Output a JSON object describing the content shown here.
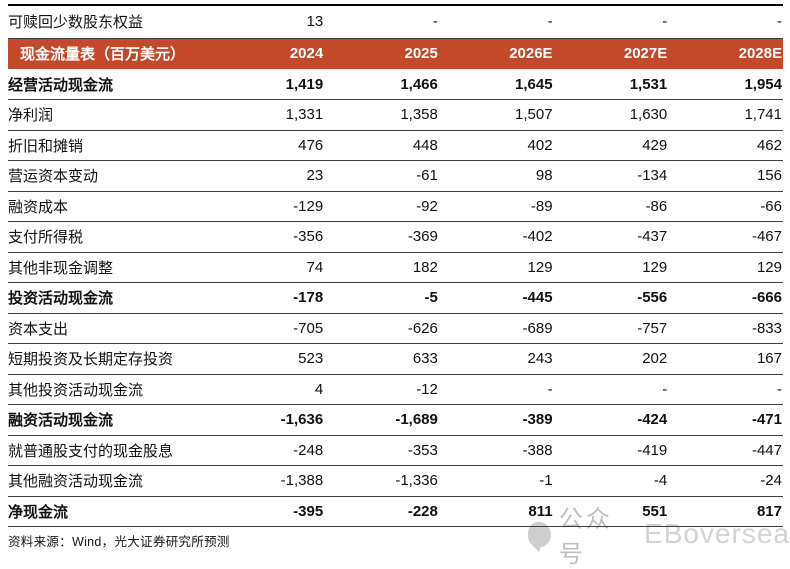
{
  "pre_row": {
    "label": "可赎回少数股东权益",
    "values": [
      "13",
      "-",
      "-",
      "-",
      "-"
    ]
  },
  "table": {
    "title": "现金流量表（百万美元）",
    "columns": [
      "2024",
      "2025",
      "2026E",
      "2027E",
      "2028E"
    ],
    "rows": [
      {
        "label": "经营活动现金流",
        "bold": true,
        "values": [
          "1,419",
          "1,466",
          "1,645",
          "1,531",
          "1,954"
        ]
      },
      {
        "label": "净利润",
        "bold": false,
        "values": [
          "1,331",
          "1,358",
          "1,507",
          "1,630",
          "1,741"
        ]
      },
      {
        "label": "折旧和摊销",
        "bold": false,
        "values": [
          "476",
          "448",
          "402",
          "429",
          "462"
        ]
      },
      {
        "label": "营运资本变动",
        "bold": false,
        "values": [
          "23",
          "-61",
          "98",
          "-134",
          "156"
        ]
      },
      {
        "label": "融资成本",
        "bold": false,
        "values": [
          "-129",
          "-92",
          "-89",
          "-86",
          "-66"
        ]
      },
      {
        "label": "支付所得税",
        "bold": false,
        "values": [
          "-356",
          "-369",
          "-402",
          "-437",
          "-467"
        ]
      },
      {
        "label": "其他非现金调整",
        "bold": false,
        "values": [
          "74",
          "182",
          "129",
          "129",
          "129"
        ]
      },
      {
        "label": "投资活动现金流",
        "bold": true,
        "values": [
          "-178",
          "-5",
          "-445",
          "-556",
          "-666"
        ]
      },
      {
        "label": "资本支出",
        "bold": false,
        "values": [
          "-705",
          "-626",
          "-689",
          "-757",
          "-833"
        ]
      },
      {
        "label": "短期投资及长期定存投资",
        "bold": false,
        "values": [
          "523",
          "633",
          "243",
          "202",
          "167"
        ]
      },
      {
        "label": "其他投资活动现金流",
        "bold": false,
        "values": [
          "4",
          "-12",
          "-",
          "-",
          "-"
        ]
      },
      {
        "label": "融资活动现金流",
        "bold": true,
        "values": [
          "-1,636",
          "-1,689",
          "-389",
          "-424",
          "-471"
        ]
      },
      {
        "label": "就普通股支付的现金股息",
        "bold": false,
        "values": [
          "-248",
          "-353",
          "-388",
          "-419",
          "-447"
        ]
      },
      {
        "label": "其他融资活动现金流",
        "bold": false,
        "values": [
          "-1,388",
          "-1,336",
          "-1",
          "-4",
          "-24"
        ]
      },
      {
        "label": "净现金流",
        "bold": true,
        "values": [
          "-395",
          "-228",
          "811",
          "551",
          "817"
        ]
      }
    ]
  },
  "source_note": "资料来源：Wind，光大证券研究所预测",
  "watermark": {
    "icon": "wechat-official-account-icon",
    "label": "公众号",
    "account_name": "EBoversea"
  },
  "colors": {
    "header_bg": "#C4482A",
    "header_text": "#FFFFFF",
    "separator": "#3F3F3F",
    "watermark_gray": "#C6C6C6"
  }
}
